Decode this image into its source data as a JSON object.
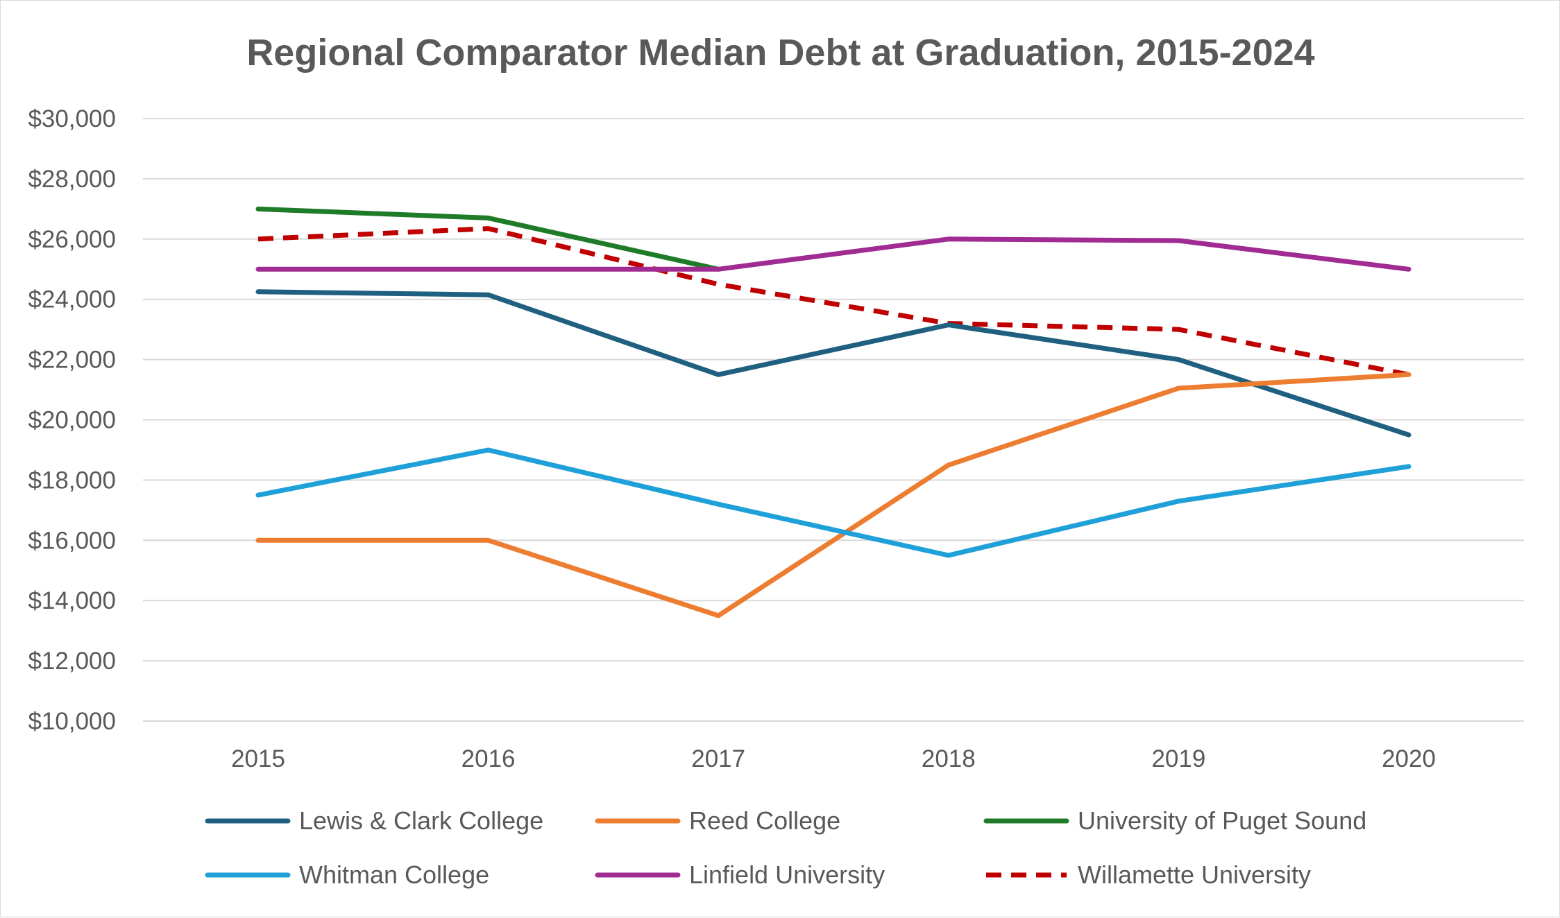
{
  "chart_data": {
    "type": "line",
    "title": "Regional Comparator Median Debt at Graduation, 2015-2024",
    "xlabel": "",
    "ylabel": "",
    "x": [
      "2015",
      "2016",
      "2017",
      "2018",
      "2019",
      "2020"
    ],
    "ylim": [
      10000,
      30000
    ],
    "y_ticks": [
      10000,
      12000,
      14000,
      16000,
      18000,
      20000,
      22000,
      24000,
      26000,
      28000,
      30000
    ],
    "y_tick_labels": [
      "$10,000",
      "$12,000",
      "$14,000",
      "$16,000",
      "$18,000",
      "$20,000",
      "$22,000",
      "$24,000",
      "$26,000",
      "$28,000",
      "$30,000"
    ],
    "grid": true,
    "legend_position": "bottom",
    "series": [
      {
        "name": "Lewis & Clark College",
        "color": "#1f5f7f",
        "dash": "solid",
        "values": [
          24250,
          24150,
          21500,
          23150,
          22000,
          19500
        ]
      },
      {
        "name": "Reed College",
        "color": "#ed7d31",
        "dash": "solid",
        "values": [
          16000,
          16000,
          13500,
          18500,
          21050,
          21500
        ]
      },
      {
        "name": "University of Puget Sound",
        "color": "#1e7b28",
        "dash": "solid",
        "values": [
          27000,
          26700,
          25000,
          null,
          null,
          null
        ]
      },
      {
        "name": "Whitman College",
        "color": "#1fa0d8",
        "dash": "solid",
        "values": [
          17500,
          19000,
          17200,
          15500,
          17300,
          18450
        ]
      },
      {
        "name": "Linfield University",
        "color": "#a02b93",
        "dash": "solid",
        "values": [
          25000,
          25000,
          25000,
          26000,
          25950,
          25000
        ]
      },
      {
        "name": "Willamette University",
        "color": "#c00000",
        "dash": "dashed",
        "values": [
          26000,
          26350,
          24500,
          23200,
          23000,
          21500
        ]
      }
    ]
  }
}
